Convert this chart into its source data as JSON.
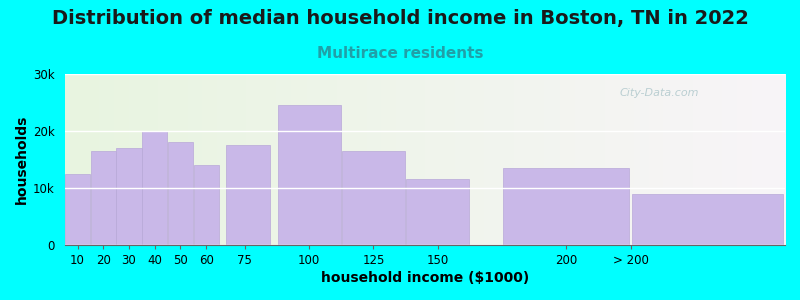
{
  "title": "Distribution of median household income in Boston, TN in 2022",
  "subtitle": "Multirace residents",
  "xlabel": "household income ($1000)",
  "ylabel": "households",
  "bar_color": "#c9b8e8",
  "bar_edge_color": "#b8a8d8",
  "background_outer": "#00ffff",
  "categories": [
    "10",
    "20",
    "30",
    "40",
    "50",
    "60",
    "75",
    "100",
    "125",
    "150",
    "200",
    "> 200"
  ],
  "values": [
    12500,
    16500,
    17000,
    20000,
    18000,
    14000,
    17500,
    24500,
    16500,
    11500,
    13500,
    9000
  ],
  "left_edges": [
    5,
    15,
    25,
    35,
    45,
    55,
    67.5,
    87.5,
    112.5,
    137.5,
    175,
    225
  ],
  "widths": [
    10,
    10,
    10,
    10,
    10,
    10,
    17.5,
    25,
    25,
    25,
    50,
    60
  ],
  "xlim": [
    5,
    285
  ],
  "xtick_positions": [
    10,
    20,
    30,
    40,
    50,
    60,
    75,
    100,
    125,
    150,
    200,
    225
  ],
  "xtick_labels": [
    "10",
    "20",
    "30",
    "40",
    "50",
    "60",
    "75",
    "100",
    "125",
    "150",
    "200",
    "> 200"
  ],
  "ylim": [
    0,
    30000
  ],
  "ytick_labels": [
    "0",
    "10k",
    "20k",
    "30k"
  ],
  "ytick_values": [
    0,
    10000,
    20000,
    30000
  ],
  "title_fontsize": 14,
  "subtitle_fontsize": 11,
  "subtitle_color": "#20a0a8",
  "axis_label_fontsize": 10,
  "tick_fontsize": 8.5,
  "watermark_text": "City-Data.com",
  "watermark_color": "#b0c8cc",
  "bg_left_color": "#e8f5e0",
  "bg_right_color": "#f8f4f8"
}
